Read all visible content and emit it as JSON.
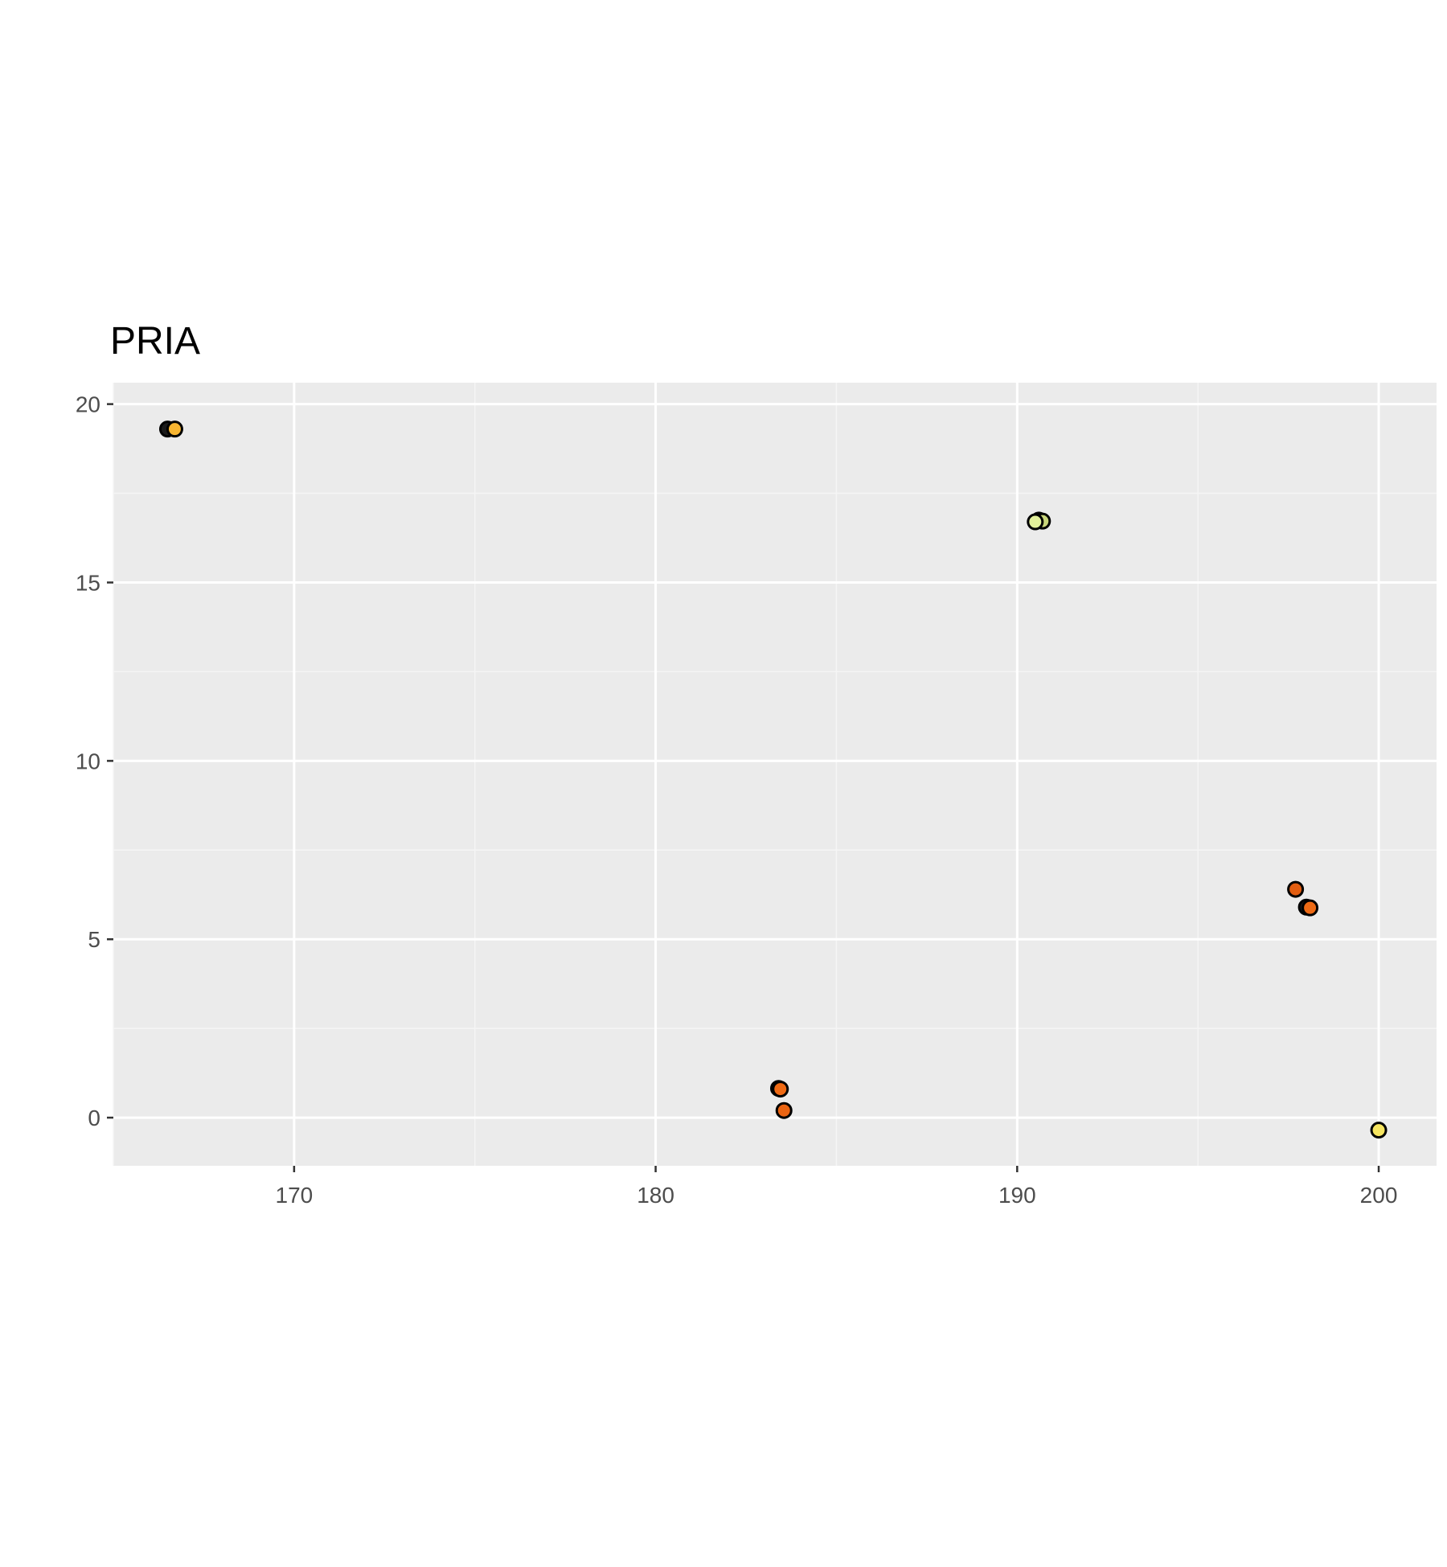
{
  "chart_data": {
    "type": "scatter",
    "title": "PRIA",
    "xlabel": "",
    "ylabel": "",
    "xlim": [
      165.0,
      201.6
    ],
    "ylim": [
      -1.35,
      20.6
    ],
    "x_ticks": [
      170,
      180,
      190,
      200
    ],
    "x_tick_labels": [
      "170",
      "180",
      "190",
      "200"
    ],
    "y_ticks": [
      0,
      5,
      10,
      15,
      20
    ],
    "y_tick_labels": [
      "0",
      "5",
      "10",
      "15",
      "20"
    ],
    "grid": true,
    "legend": "none",
    "colors": {
      "panel_background": "#ebebeb",
      "grid_major": "#ffffff",
      "grid_minor": "#f5f5f5",
      "point_stroke": "#000000"
    },
    "points": [
      {
        "x": 166.5,
        "y": 19.3,
        "color": "#1a1a1a"
      },
      {
        "x": 166.7,
        "y": 19.3,
        "color": "#f7b531"
      },
      {
        "x": 190.6,
        "y": 16.75,
        "color": "#1a1a1a"
      },
      {
        "x": 190.7,
        "y": 16.72,
        "color": "#c9d67a"
      },
      {
        "x": 190.5,
        "y": 16.7,
        "color": "#e2f09a"
      },
      {
        "x": 183.4,
        "y": 0.82,
        "color": "#1a1a1a"
      },
      {
        "x": 183.45,
        "y": 0.8,
        "color": "#f06a14"
      },
      {
        "x": 183.55,
        "y": 0.2,
        "color": "#ea6412"
      },
      {
        "x": 197.7,
        "y": 6.4,
        "color": "#e25d10"
      },
      {
        "x": 198.0,
        "y": 5.9,
        "color": "#1a1a1a"
      },
      {
        "x": 198.1,
        "y": 5.88,
        "color": "#ed6a15"
      },
      {
        "x": 200.0,
        "y": -0.35,
        "color": "#f6e560"
      }
    ]
  }
}
